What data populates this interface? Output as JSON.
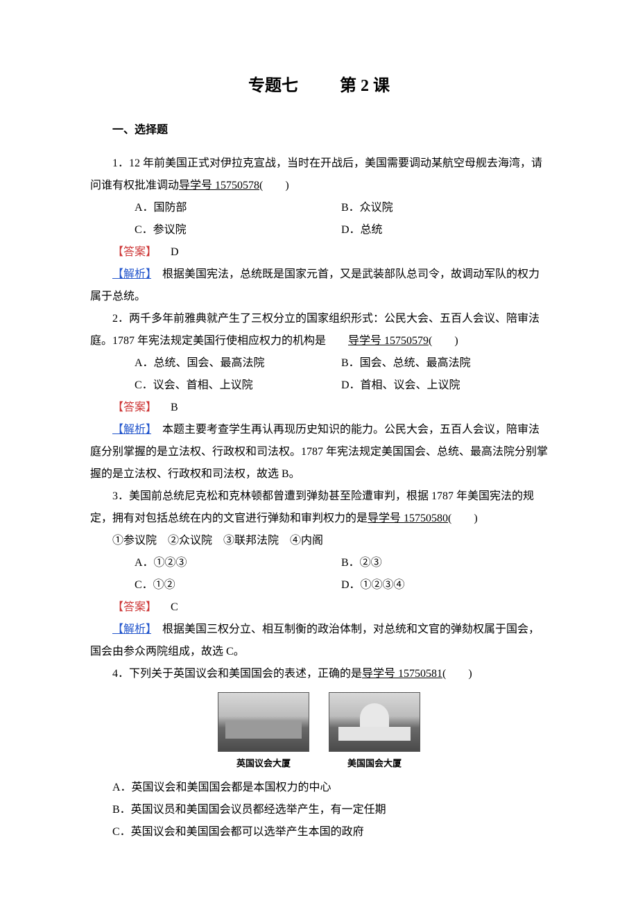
{
  "title_part1": "专题七",
  "title_part2": "第 2 课",
  "section1": "一、选择题",
  "q1": {
    "text_a": "1．12 年前美国正式对伊拉克宣战，当时在开战后，美国需要调动某航空母舰去海湾，请问谁有权批准调动",
    "guide": "导学号 15750578",
    "blank": "(　　)",
    "optA": "A．国防部",
    "optB": "B．众议院",
    "optC": "C．参议院",
    "optD": "D．总统",
    "answer_label": "【答案】",
    "answer": "D",
    "explain_label": "【解析】",
    "explain": "　根据美国宪法，总统既是国家元首，又是武装部队总司令，故调动军队的权力属于总统。"
  },
  "q2": {
    "text_a": "2．两千多年前雅典就产生了三权分立的国家组织形式：公民大会、五百人会议、陪审法庭。1787 年宪法规定美国行使相应权力的机构是　　",
    "guide": "导学号 15750579",
    "blank": "(　　)",
    "optA": "A．总统、国会、最高法院",
    "optB": "B．国会、总统、最高法院",
    "optC": "C．议会、首相、上议院",
    "optD": "D．首相、议会、上议院",
    "answer_label": "【答案】",
    "answer": "B",
    "explain_label": "【解析】",
    "explain": "　本题主要考查学生再认再现历史知识的能力。公民大会，五百人会议，陪审法庭分别掌握的是立法权、行政权和司法权。1787 年宪法规定美国国会、总统、最高法院分别掌握的是立法权、行政权和司法权，故选 B。"
  },
  "q3": {
    "text_a": "3．美国前总统尼克松和克林顿都曾遭到弹劾甚至险遭审判，根据 1787 年美国宪法的规定，拥有对包括总统在内的文官进行弹劾和审判权力的是",
    "guide": "导学号 15750580",
    "blank": "(　　)",
    "items": "①参议院　②众议院　③联邦法院　④内阁",
    "optA": "A．①②③",
    "optB": "B．②③",
    "optC": "C．①②",
    "optD": "D．①②③④",
    "answer_label": "【答案】",
    "answer": "C",
    "explain_label": "【解析】",
    "explain": "　根据美国三权分立、相互制衡的政治体制，对总统和文官的弹劾权属于国会，国会由参众两院组成，故选 C。"
  },
  "q4": {
    "text_a": "4．下列关于英国议会和美国国会的表述，正确的是",
    "guide": "导学号 15750581",
    "blank": "(　　)",
    "caption1": "英国议会大厦",
    "caption2": "美国国会大厦",
    "optA": "A．英国议会和美国国会都是本国权力的中心",
    "optB": "B．英国议员和美国国会议员都经选举产生，有一定任期",
    "optC": "C．英国议会和美国国会都可以选举产生本国的政府"
  }
}
